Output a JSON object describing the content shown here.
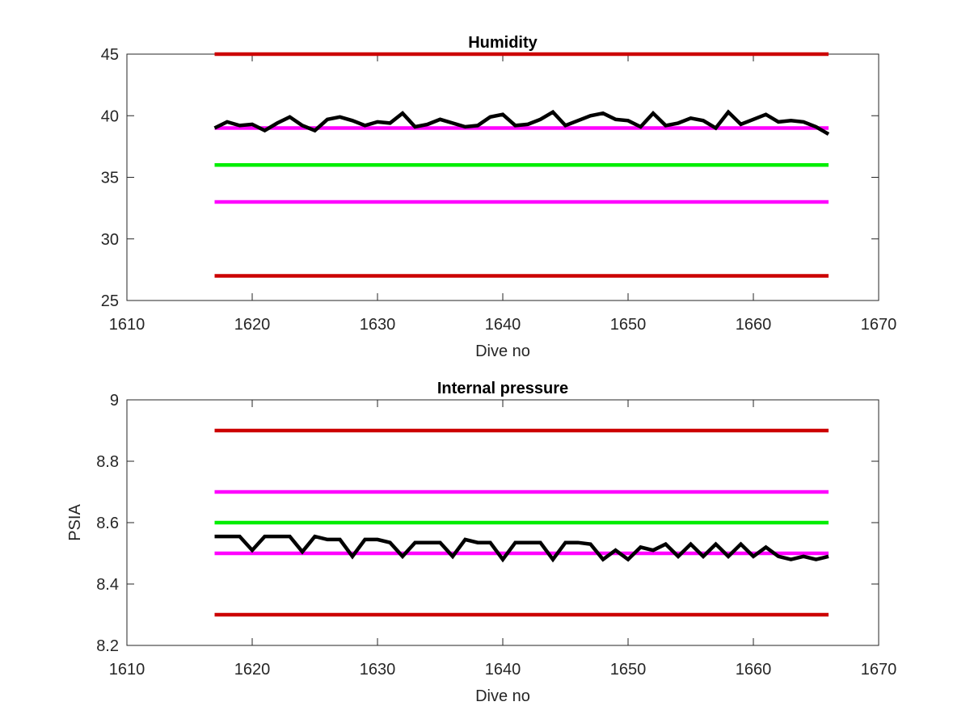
{
  "chart_data": [
    {
      "type": "line",
      "title": "Humidity",
      "xlabel": "Dive no",
      "ylabel": "",
      "xlim": [
        1610,
        1670
      ],
      "ylim": [
        25,
        45
      ],
      "xticks": [
        1610,
        1620,
        1630,
        1640,
        1650,
        1660,
        1670
      ],
      "yticks": [
        25,
        30,
        35,
        40,
        45
      ],
      "xtick_labels": [
        "1610",
        "1620",
        "1630",
        "1640",
        "1650",
        "1660",
        "1670"
      ],
      "ytick_labels": [
        "25",
        "30",
        "35",
        "40",
        "45"
      ],
      "grid": false,
      "series": [
        {
          "color": "#000000",
          "style": "data",
          "x": [
            1617,
            1618,
            1619,
            1620,
            1621,
            1622,
            1623,
            1624,
            1625,
            1626,
            1627,
            1628,
            1629,
            1630,
            1631,
            1632,
            1633,
            1634,
            1635,
            1636,
            1637,
            1638,
            1639,
            1640,
            1641,
            1642,
            1643,
            1644,
            1645,
            1646,
            1647,
            1648,
            1649,
            1650,
            1651,
            1652,
            1653,
            1654,
            1655,
            1656,
            1657,
            1658,
            1659,
            1660,
            1661,
            1662,
            1663,
            1664,
            1665,
            1666
          ],
          "y": [
            39.0,
            39.5,
            39.2,
            39.3,
            38.8,
            39.4,
            39.9,
            39.2,
            38.8,
            39.7,
            39.9,
            39.6,
            39.2,
            39.5,
            39.4,
            40.2,
            39.1,
            39.3,
            39.7,
            39.4,
            39.1,
            39.2,
            39.9,
            40.1,
            39.2,
            39.3,
            39.7,
            40.3,
            39.2,
            39.6,
            40.0,
            40.2,
            39.7,
            39.6,
            39.1,
            40.2,
            39.2,
            39.4,
            39.8,
            39.6,
            39.0,
            40.3,
            39.3,
            39.7,
            40.1,
            39.5,
            39.6,
            39.5,
            39.1,
            38.5
          ]
        },
        {
          "color": "#cc0000",
          "style": "limit",
          "x": [
            1617,
            1666
          ],
          "y": [
            45,
            45
          ]
        },
        {
          "color": "#cc0000",
          "style": "limit",
          "x": [
            1617,
            1666
          ],
          "y": [
            27,
            27
          ]
        },
        {
          "color": "#ff00ff",
          "style": "limit",
          "x": [
            1617,
            1666
          ],
          "y": [
            39,
            39
          ]
        },
        {
          "color": "#ff00ff",
          "style": "limit",
          "x": [
            1617,
            1666
          ],
          "y": [
            33,
            33
          ]
        },
        {
          "color": "#00ee00",
          "style": "limit",
          "x": [
            1617,
            1666
          ],
          "y": [
            36,
            36
          ]
        }
      ]
    },
    {
      "type": "line",
      "title": "Internal pressure",
      "xlabel": "Dive no",
      "ylabel": "PSIA",
      "xlim": [
        1610,
        1670
      ],
      "ylim": [
        8.2,
        9
      ],
      "xticks": [
        1610,
        1620,
        1630,
        1640,
        1650,
        1660,
        1670
      ],
      "yticks": [
        8.2,
        8.4,
        8.6,
        8.8,
        9
      ],
      "xtick_labels": [
        "1610",
        "1620",
        "1630",
        "1640",
        "1650",
        "1660",
        "1670"
      ],
      "ytick_labels": [
        "8.2",
        "8.4",
        "8.6",
        "8.8",
        "9"
      ],
      "grid": false,
      "series": [
        {
          "color": "#000000",
          "style": "data",
          "x": [
            1617,
            1618,
            1619,
            1620,
            1621,
            1622,
            1623,
            1624,
            1625,
            1626,
            1627,
            1628,
            1629,
            1630,
            1631,
            1632,
            1633,
            1634,
            1635,
            1636,
            1637,
            1638,
            1639,
            1640,
            1641,
            1642,
            1643,
            1644,
            1645,
            1646,
            1647,
            1648,
            1649,
            1650,
            1651,
            1652,
            1653,
            1654,
            1655,
            1656,
            1657,
            1658,
            1659,
            1660,
            1661,
            1662,
            1663,
            1664,
            1665,
            1666
          ],
          "y": [
            8.555,
            8.555,
            8.555,
            8.51,
            8.555,
            8.555,
            8.555,
            8.505,
            8.555,
            8.545,
            8.545,
            8.49,
            8.545,
            8.545,
            8.535,
            8.49,
            8.535,
            8.535,
            8.535,
            8.49,
            8.545,
            8.535,
            8.535,
            8.48,
            8.535,
            8.535,
            8.535,
            8.48,
            8.535,
            8.535,
            8.53,
            8.48,
            8.51,
            8.48,
            8.52,
            8.51,
            8.53,
            8.49,
            8.53,
            8.49,
            8.53,
            8.49,
            8.53,
            8.49,
            8.52,
            8.49,
            8.48,
            8.49,
            8.48,
            8.49
          ]
        },
        {
          "color": "#cc0000",
          "style": "limit",
          "x": [
            1617,
            1666
          ],
          "y": [
            8.9,
            8.9
          ]
        },
        {
          "color": "#cc0000",
          "style": "limit",
          "x": [
            1617,
            1666
          ],
          "y": [
            8.3,
            8.3
          ]
        },
        {
          "color": "#ff00ff",
          "style": "limit",
          "x": [
            1617,
            1666
          ],
          "y": [
            8.7,
            8.7
          ]
        },
        {
          "color": "#ff00ff",
          "style": "limit",
          "x": [
            1617,
            1666
          ],
          "y": [
            8.5,
            8.5
          ]
        },
        {
          "color": "#00ee00",
          "style": "limit",
          "x": [
            1617,
            1666
          ],
          "y": [
            8.6,
            8.6
          ]
        }
      ]
    }
  ]
}
